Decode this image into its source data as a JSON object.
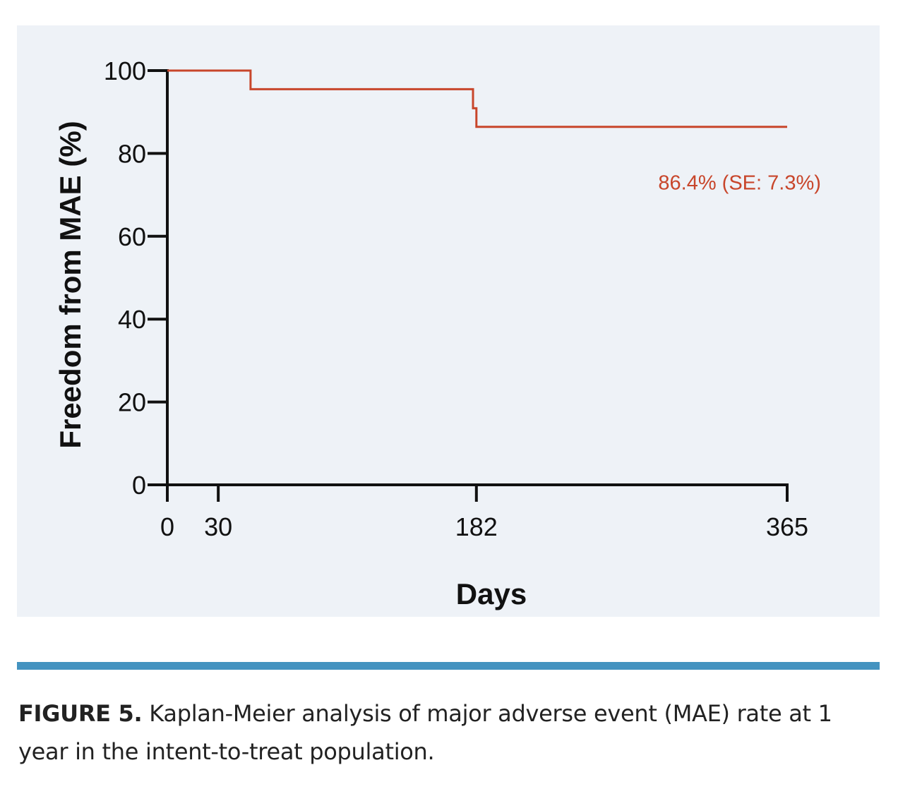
{
  "chart_data": {
    "type": "line",
    "step": true,
    "xlabel": "Days",
    "ylabel": "Freedom from MAE (%)",
    "xlim": [
      0,
      365
    ],
    "ylim": [
      0,
      100
    ],
    "x_ticks": [
      0,
      30,
      182,
      365
    ],
    "y_ticks": [
      0,
      20,
      40,
      60,
      80,
      100
    ],
    "grid": false,
    "series": [
      {
        "color": "#c8462b",
        "x": [
          0,
          49,
          49,
          180,
          180,
          182,
          182,
          365
        ],
        "y": [
          100,
          100,
          95.5,
          95.5,
          90.9,
          90.9,
          86.4,
          86.4
        ]
      }
    ],
    "annotations": [
      {
        "text": "86.4% (SE: 7.3%)",
        "x": 300,
        "y": 73,
        "color": "#c8462b"
      }
    ]
  },
  "caption": {
    "label": "FIGURE 5.",
    "text": " Kaplan-Meier analysis of major adverse event (MAE) rate at 1 year in the intent-to-treat population."
  }
}
